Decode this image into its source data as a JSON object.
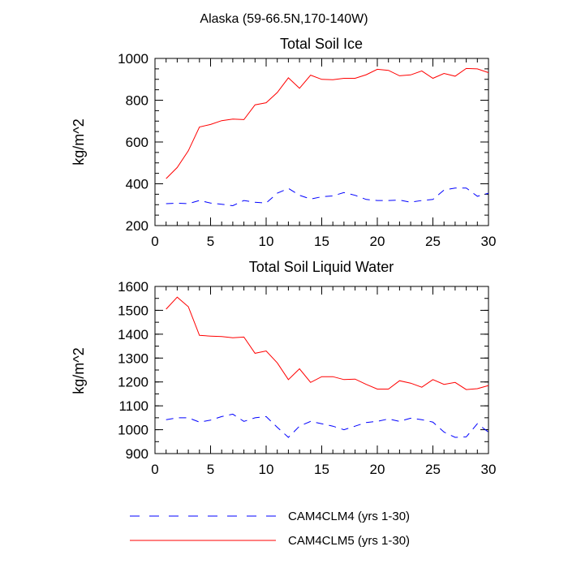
{
  "figure_title": "Alaska (59-66.5N,170-140W)",
  "colors": {
    "clm4": "#0000ff",
    "clm5": "#ff0000",
    "axis": "#000000"
  },
  "legend": [
    {
      "name": "CAM4CLM4 (yrs 1-30)",
      "style": "dashed",
      "color": "#0000ff"
    },
    {
      "name": "CAM4CLM5 (yrs 1-30)",
      "style": "solid",
      "color": "#ff0000"
    }
  ],
  "chart_data": [
    {
      "type": "line",
      "title": "Total Soil Ice",
      "xlabel": "",
      "ylabel": "kg/m^2",
      "xlim": [
        0,
        30
      ],
      "ylim": [
        200,
        1000
      ],
      "x_ticks": [
        0,
        5,
        10,
        15,
        20,
        25,
        30
      ],
      "y_ticks": [
        200,
        400,
        600,
        800,
        1000
      ],
      "x": [
        1,
        2,
        3,
        4,
        5,
        6,
        7,
        8,
        9,
        10,
        11,
        12,
        13,
        14,
        15,
        16,
        17,
        18,
        19,
        20,
        21,
        22,
        23,
        24,
        25,
        26,
        27,
        28,
        29,
        30
      ],
      "series": [
        {
          "name": "CAM4CLM4 (yrs 1-30)",
          "style": "dashed",
          "values": [
            305,
            307,
            305,
            320,
            308,
            302,
            295,
            320,
            312,
            308,
            355,
            378,
            345,
            327,
            338,
            342,
            358,
            345,
            325,
            320,
            320,
            322,
            312,
            320,
            325,
            370,
            380,
            380,
            340,
            355
          ]
        },
        {
          "name": "CAM4CLM5 (yrs 1-30)",
          "style": "solid",
          "values": [
            425,
            478,
            558,
            672,
            684,
            702,
            710,
            707,
            778,
            788,
            837,
            907,
            857,
            920,
            900,
            898,
            905,
            905,
            922,
            948,
            943,
            917,
            921,
            940,
            905,
            928,
            915,
            952,
            950,
            932
          ]
        }
      ]
    },
    {
      "type": "line",
      "title": "Total Soil Liquid Water",
      "xlabel": "",
      "ylabel": "kg/m^2",
      "xlim": [
        0,
        30
      ],
      "ylim": [
        900,
        1600
      ],
      "x_ticks": [
        0,
        5,
        10,
        15,
        20,
        25,
        30
      ],
      "y_ticks": [
        900,
        1000,
        1100,
        1200,
        1300,
        1400,
        1500,
        1600
      ],
      "x": [
        1,
        2,
        3,
        4,
        5,
        6,
        7,
        8,
        9,
        10,
        11,
        12,
        13,
        14,
        15,
        16,
        17,
        18,
        19,
        20,
        21,
        22,
        23,
        24,
        25,
        26,
        27,
        28,
        29,
        30
      ],
      "series": [
        {
          "name": "CAM4CLM4 (yrs 1-30)",
          "style": "dashed",
          "values": [
            1042,
            1050,
            1050,
            1032,
            1040,
            1055,
            1065,
            1035,
            1050,
            1055,
            1010,
            968,
            1015,
            1035,
            1025,
            1015,
            1000,
            1015,
            1030,
            1035,
            1045,
            1035,
            1048,
            1042,
            1032,
            990,
            968,
            970,
            1025,
            990
          ]
        },
        {
          "name": "CAM4CLM5 (yrs 1-30)",
          "style": "solid",
          "values": [
            1505,
            1555,
            1515,
            1395,
            1392,
            1390,
            1385,
            1388,
            1320,
            1330,
            1280,
            1210,
            1255,
            1198,
            1222,
            1222,
            1210,
            1212,
            1190,
            1170,
            1170,
            1205,
            1195,
            1178,
            1210,
            1190,
            1198,
            1168,
            1172,
            1185
          ]
        }
      ]
    }
  ]
}
